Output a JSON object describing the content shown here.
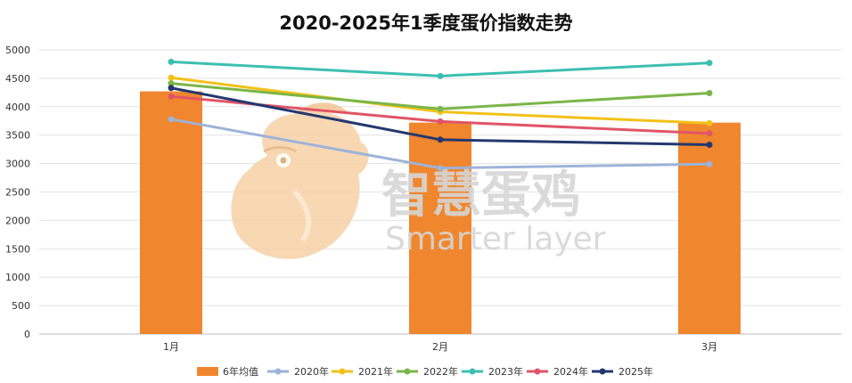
{
  "chart_data": {
    "type": "bar",
    "title": "2020-2025年1季度蛋价指数走势",
    "categories": [
      "1月",
      "2月",
      "3月"
    ],
    "ylim": [
      0,
      5000
    ],
    "yticks": [
      0,
      500,
      1000,
      1500,
      2000,
      2500,
      3000,
      3500,
      4000,
      4500,
      5000
    ],
    "grid": true,
    "legend_position": "bottom",
    "series": [
      {
        "name": "6年均值",
        "kind": "bar",
        "color": "#f0862e",
        "values": [
          4270,
          3720,
          3720
        ]
      },
      {
        "name": "2020年",
        "kind": "line",
        "color": "#9db3d9",
        "values": [
          3780,
          2920,
          2990
        ]
      },
      {
        "name": "2021年",
        "kind": "line",
        "color": "#f2c118",
        "values": [
          4510,
          3910,
          3710
        ]
      },
      {
        "name": "2022年",
        "kind": "line",
        "color": "#7ab648",
        "values": [
          4410,
          3960,
          4240
        ]
      },
      {
        "name": "2023年",
        "kind": "line",
        "color": "#3cbfb2",
        "values": [
          4790,
          4540,
          4770
        ]
      },
      {
        "name": "2024年",
        "kind": "line",
        "color": "#e05567",
        "values": [
          4180,
          3740,
          3530
        ]
      },
      {
        "name": "2025年",
        "kind": "line",
        "color": "#23386e",
        "values": [
          4330,
          3420,
          3330
        ]
      }
    ]
  },
  "watermark": {
    "chinese_text": "智慧蛋鸡",
    "english_text": "Smarter layer",
    "icon": "hen-head-icon",
    "colors": {
      "icon": "#f6d2a6",
      "text": "#d6d6d6"
    }
  }
}
